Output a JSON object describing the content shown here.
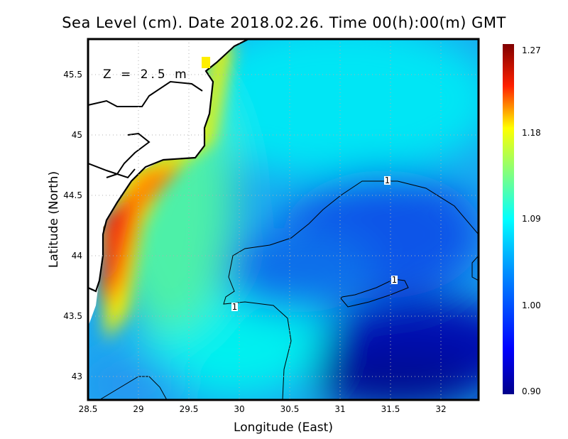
{
  "title": "Sea Level (cm). Date 2018.02.26. Time 00(h):00(m) GMT",
  "annotation": "Z = 2.5 m",
  "chart_data": {
    "type": "heatmap",
    "title": "Sea Level (cm). Date 2018.02.26. Time 00(h):00(m) GMT",
    "xlabel": "Longitude (East)",
    "ylabel": "Latitude (North)",
    "xlim": [
      28.5,
      32.37
    ],
    "ylim": [
      42.81,
      45.79
    ],
    "xticks": [
      "28.5",
      "29",
      "29.5",
      "30",
      "30.5",
      "31",
      "31.5",
      "32"
    ],
    "yticks": [
      "43",
      "43.5",
      "44",
      "44.5",
      "45",
      "45.5"
    ],
    "grid": true,
    "colorbar": {
      "range": [
        0.9,
        1.27
      ],
      "ticks": [
        "1.27",
        "1.18",
        "1.09",
        "1.00",
        "0.90"
      ],
      "colormap": "jet"
    },
    "contour_labels": [
      "1",
      "1",
      "1"
    ]
  }
}
